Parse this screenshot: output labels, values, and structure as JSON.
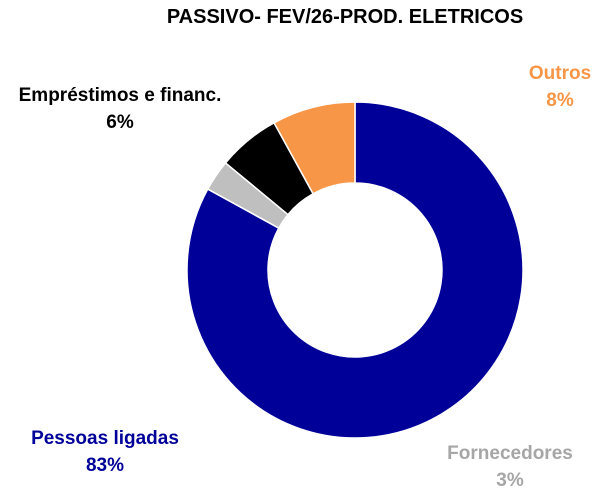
{
  "chart_data": {
    "type": "donut",
    "title": "PASSIVO- FEV/26-PROD. ELETRICOS",
    "categories": [
      "Pessoas ligadas",
      "Fornecedores",
      "Empréstimos e financ.",
      "Outros"
    ],
    "values": [
      83,
      3,
      6,
      8
    ],
    "value_labels": [
      "83%",
      "3%",
      "6%",
      "8%"
    ],
    "colors": [
      "#000099",
      "#bfbfbf",
      "#000000",
      "#f79646"
    ]
  }
}
